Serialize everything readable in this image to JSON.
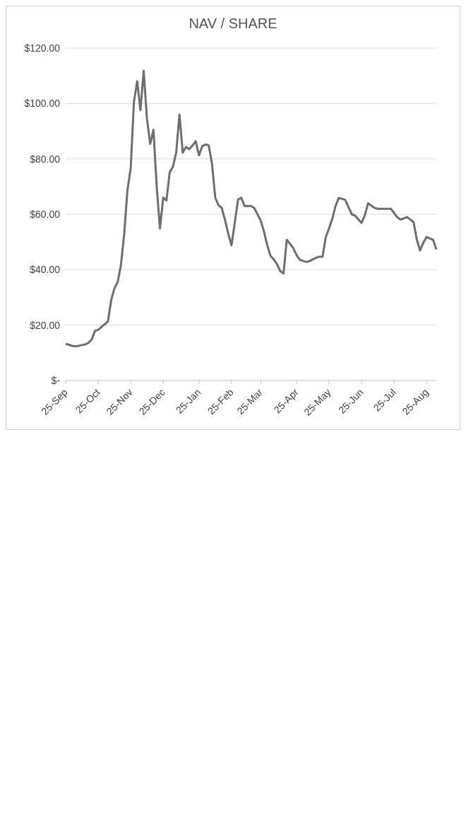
{
  "chart_data": {
    "type": "line",
    "title": "NAV / SHARE",
    "categories": [
      "25-Sep",
      null,
      null,
      null,
      null,
      null,
      null,
      null,
      null,
      null,
      "25-Oct",
      null,
      null,
      null,
      null,
      null,
      null,
      null,
      null,
      null,
      "25-Nov",
      null,
      null,
      null,
      null,
      null,
      null,
      null,
      null,
      null,
      "25-Dec",
      null,
      null,
      null,
      null,
      null,
      null,
      null,
      null,
      null,
      null,
      "25-Jan",
      null,
      null,
      null,
      null,
      null,
      null,
      null,
      null,
      null,
      "25-Feb",
      null,
      null,
      null,
      null,
      null,
      null,
      null,
      null,
      "25-Mar",
      null,
      null,
      null,
      null,
      null,
      null,
      null,
      null,
      null,
      null,
      "25-Apr",
      null,
      null,
      null,
      null,
      null,
      null,
      null,
      null,
      null,
      "25-May",
      null,
      null,
      null,
      null,
      null,
      null,
      null,
      null,
      null,
      "25-Jun",
      null,
      null,
      null,
      null,
      null,
      null,
      null,
      null,
      null,
      "25-Jul",
      null,
      null,
      null,
      null,
      null,
      null,
      null,
      null,
      null,
      "25-Aug",
      null,
      null,
      null
    ],
    "series": [
      {
        "color": "#6e6e6e",
        "values": [
          13.2,
          12.9,
          12.5,
          12.3,
          12.5,
          12.8,
          13.0,
          13.6,
          14.8,
          17.9,
          18.3,
          19.3,
          20.3,
          21.3,
          29,
          33.3,
          35.6,
          41.7,
          52.8,
          68.7,
          76.6,
          100.6,
          108,
          97.6,
          111.8,
          94.5,
          85.4,
          90.5,
          70,
          54.9,
          66,
          65,
          75.2,
          77.2,
          82.3,
          96,
          82.3,
          84.3,
          83.5,
          84.8,
          86.4,
          81.3,
          84.6,
          85.2,
          84.9,
          78.3,
          66,
          63.3,
          62.3,
          58,
          53,
          48.8,
          56.9,
          65.3,
          66,
          63,
          63,
          63,
          62.3,
          60,
          57.7,
          53.7,
          48.8,
          45,
          43.7,
          42,
          39.5,
          38.6,
          50.8,
          49.3,
          47.8,
          45.3,
          43.6,
          43.2,
          42.8,
          43.1,
          43.7,
          44.3,
          44.7,
          44.7,
          51.8,
          54.9,
          58.4,
          63,
          65.9,
          65.6,
          65.2,
          62.5,
          60,
          59.5,
          58.2,
          56.9,
          59.6,
          64,
          63.1,
          62.3,
          62,
          62,
          62,
          62,
          62,
          60.5,
          58.9,
          58.1,
          58.5,
          59,
          58.1,
          57.2,
          50.8,
          46.9,
          49.8,
          51.8,
          51.3,
          50.8,
          47.3
        ]
      }
    ],
    "ylim": [
      0,
      120
    ],
    "yticks": [
      {
        "value": 0,
        "label": "$-"
      },
      {
        "value": 20,
        "label": "$20.00"
      },
      {
        "value": 40,
        "label": "$40.00"
      },
      {
        "value": 60,
        "label": "$60.00"
      },
      {
        "value": 80,
        "label": "$80.00"
      },
      {
        "value": 100,
        "label": "$100.00"
      },
      {
        "value": 120,
        "label": "$120.00"
      }
    ],
    "grid": "y",
    "legend": false,
    "line_style": "solid"
  }
}
